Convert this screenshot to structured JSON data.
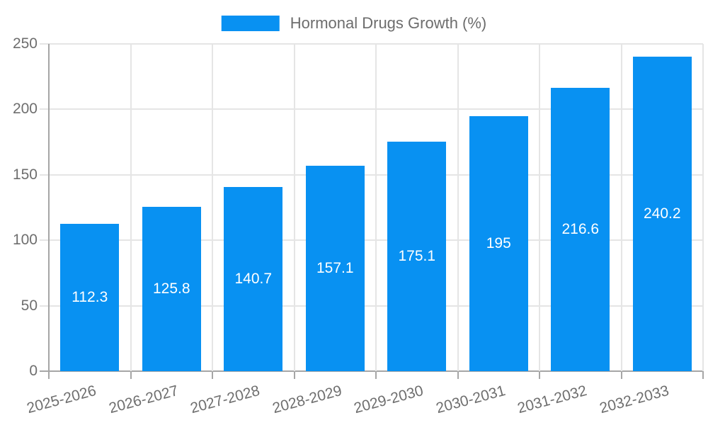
{
  "chart_data": {
    "type": "bar",
    "title": "",
    "series_label": "Hormonal Drugs Growth (%)",
    "categories": [
      "2025-2026",
      "2026-2027",
      "2027-2028",
      "2028-2029",
      "2029-2030",
      "2030-2031",
      "2031-2032",
      "2032-2033"
    ],
    "values": [
      112.3,
      125.8,
      140.7,
      157.1,
      175.1,
      195,
      216.6,
      240.2
    ],
    "xlabel": "",
    "ylabel": "",
    "ylim": [
      0,
      250
    ],
    "yticks": [
      0,
      50,
      100,
      150,
      200,
      250
    ],
    "grid": true,
    "legend_position": "top-center",
    "colors": {
      "bar": "#0891f2",
      "value_label": "#ffffff",
      "axis": "#a6a6a6",
      "gridline": "#e5e5e5",
      "tick_label": "#6e6e6e",
      "legend_text": "#6d6d6d",
      "background": "#ffffff"
    }
  }
}
